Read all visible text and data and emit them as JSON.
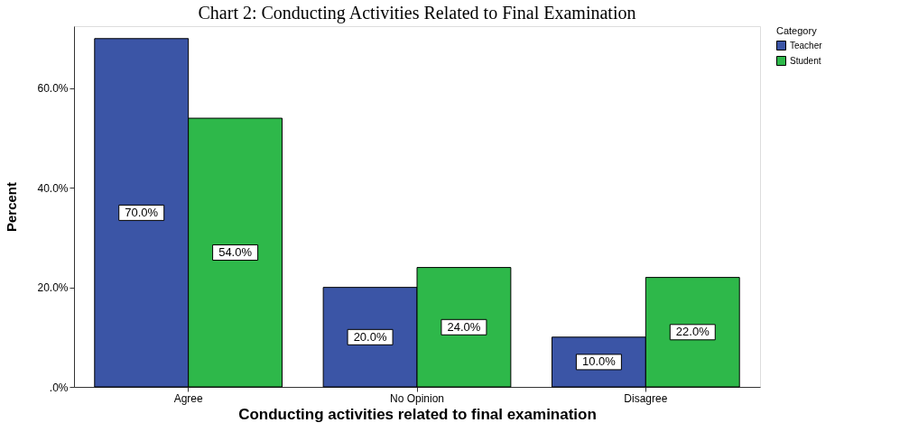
{
  "chart_data": {
    "type": "bar",
    "title": "Chart 2: Conducting Activities Related to Final Examination",
    "xlabel": "Conducting activities related to final examination",
    "ylabel": "Percent",
    "legend_title": "Category",
    "categories": [
      "Agree",
      "No Opinion",
      "Disagree"
    ],
    "series": [
      {
        "name": "Teacher",
        "color": "#3b55a6",
        "values": [
          70,
          20,
          10
        ],
        "value_labels": [
          "70.0%",
          "20.0%",
          "10.0%"
        ]
      },
      {
        "name": "Student",
        "color": "#2eb84a",
        "values": [
          54,
          24,
          22
        ],
        "value_labels": [
          "54.0%",
          "24.0%",
          "22.0%"
        ]
      }
    ],
    "ylim": [
      0,
      72.5
    ],
    "yticks": [
      {
        "value": 0,
        "label": ".0%"
      },
      {
        "value": 20,
        "label": "20.0%"
      },
      {
        "value": 40,
        "label": "40.0%"
      },
      {
        "value": 60,
        "label": "60.0%"
      }
    ],
    "grid": false,
    "legend": "top right"
  }
}
